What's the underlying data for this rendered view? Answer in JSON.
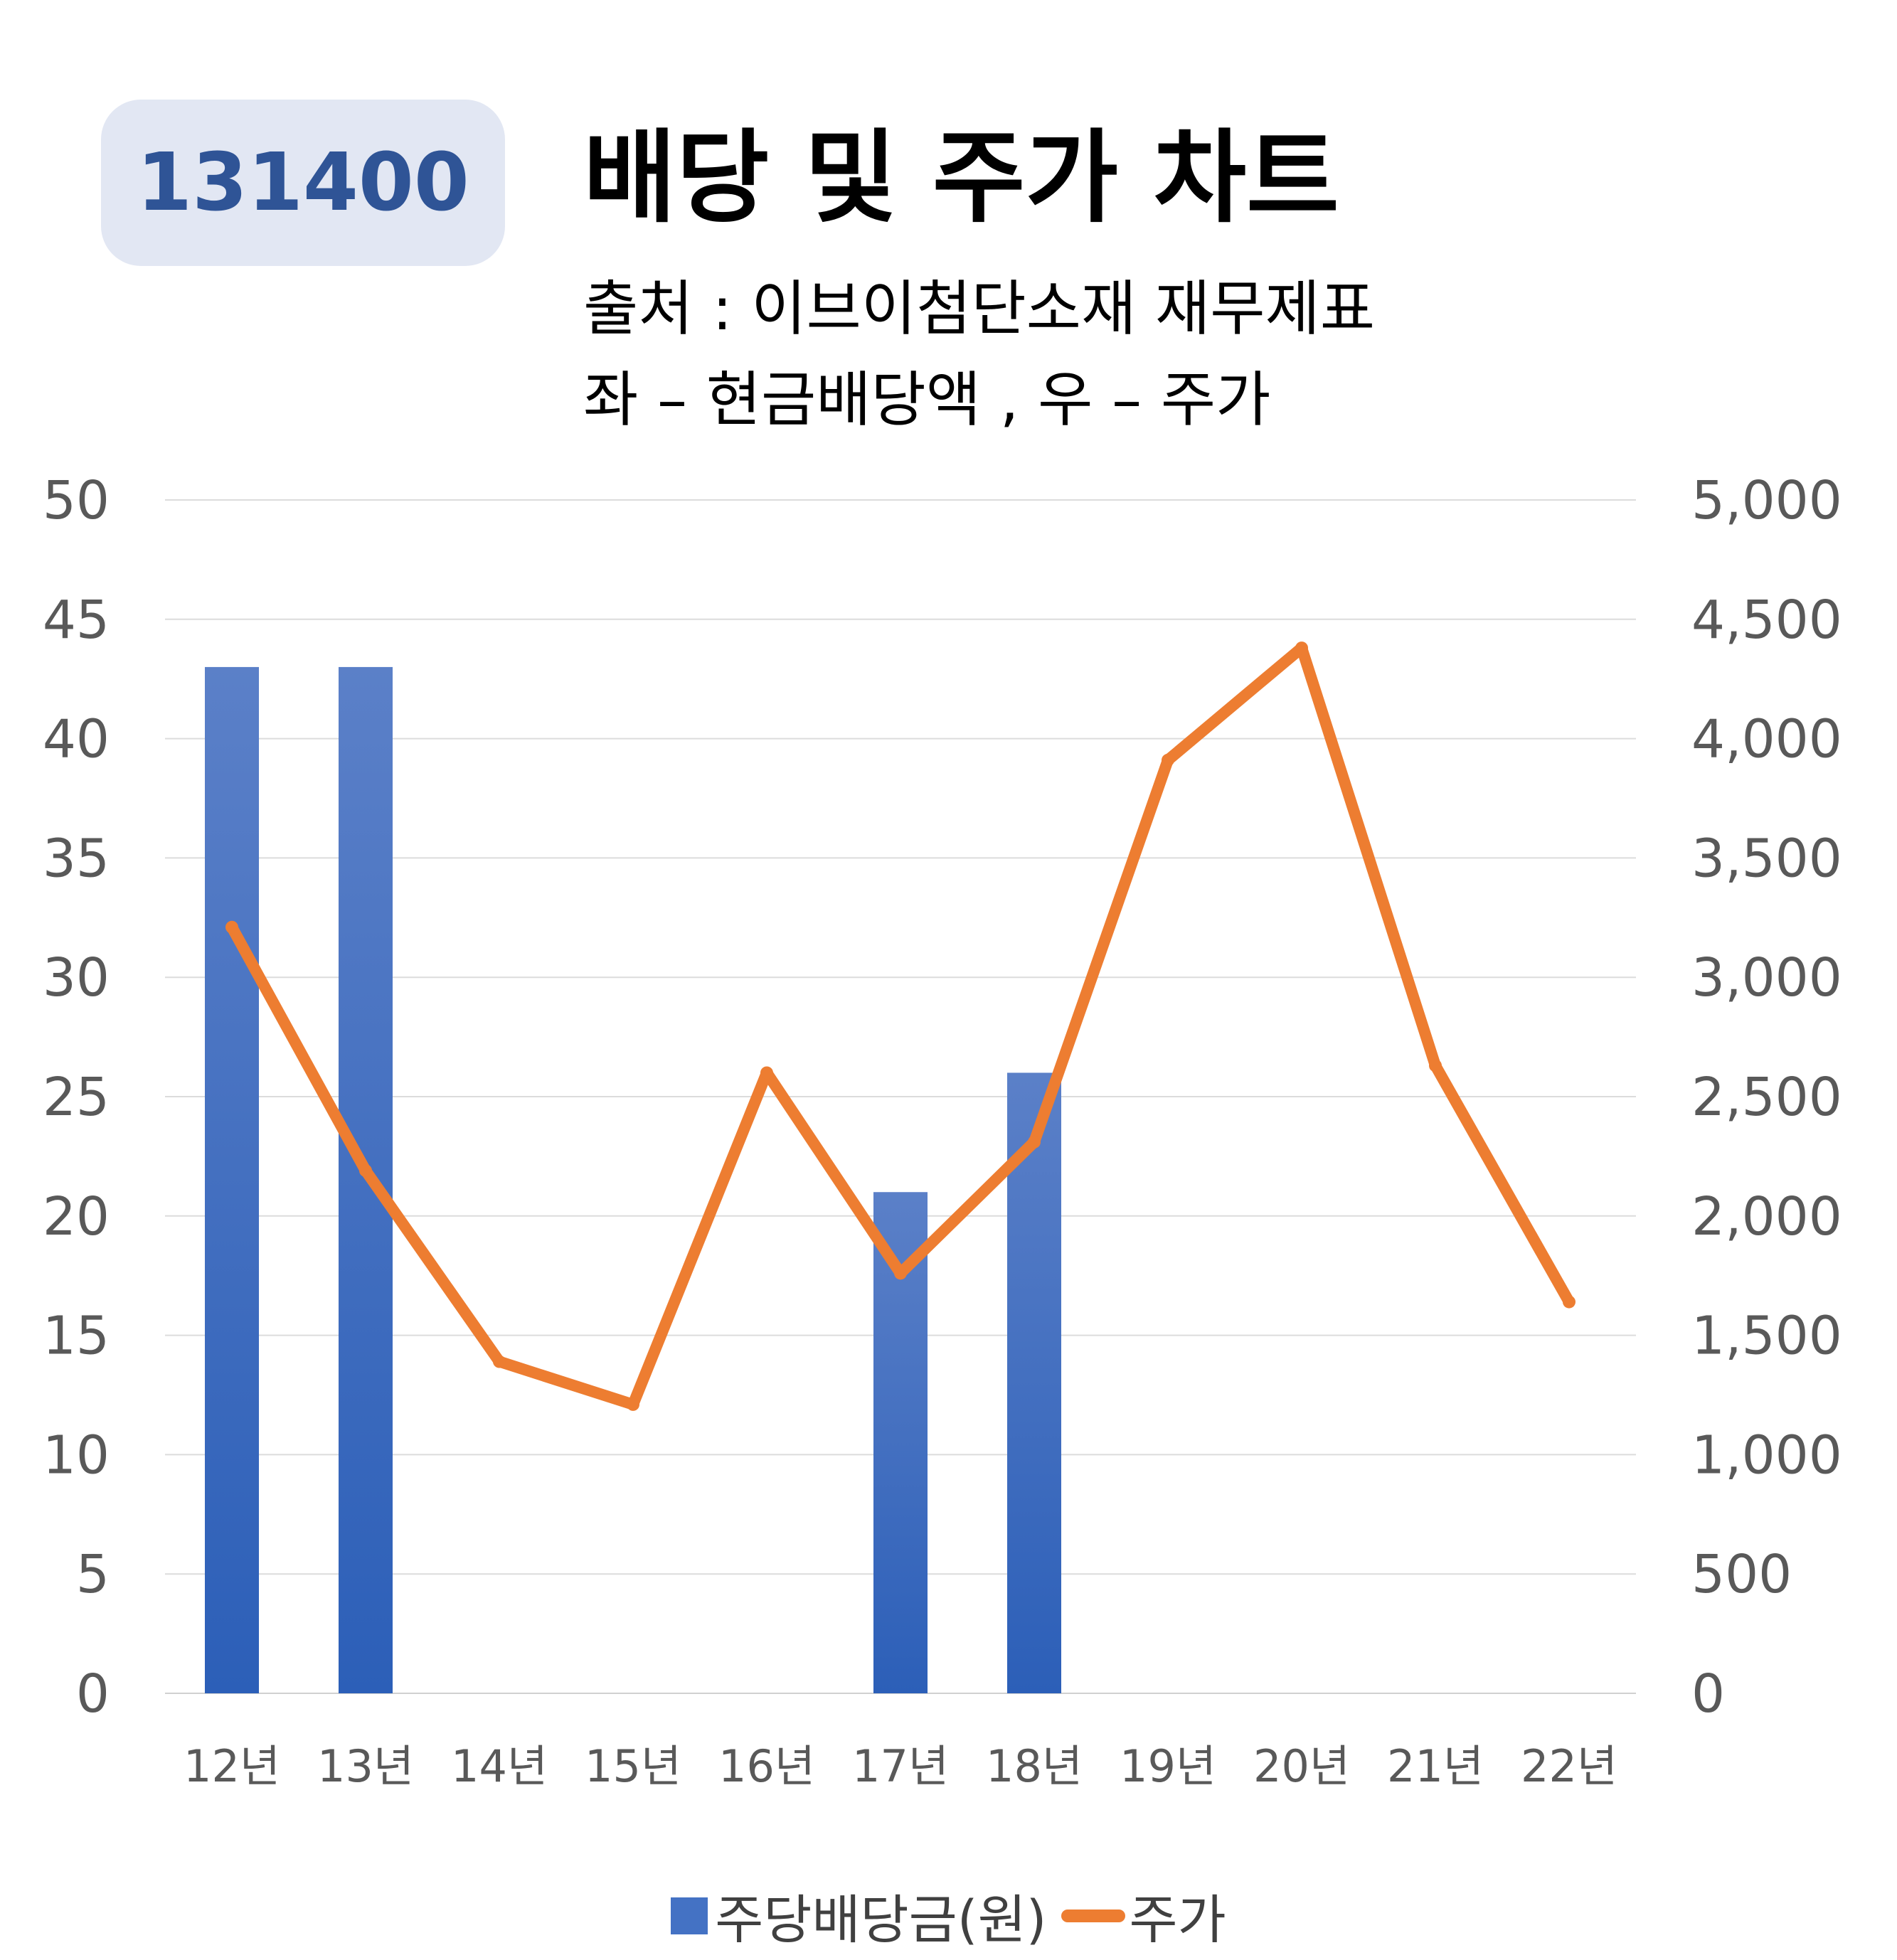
{
  "badge": "131400",
  "title": "배당 및 주가 차트",
  "subtitle_source": "출처 : 이브이첨단소재 재무제표",
  "subtitle_axes": "좌 – 현금배당액  ,  우 – 주가",
  "colors": {
    "bar": "#4472c4",
    "line": "#ed7d31",
    "badge_bg": "#e2e7f3",
    "badge_text": "#2f5496"
  },
  "chart_data": {
    "type": "bar",
    "categories": [
      "12년",
      "13년",
      "14년",
      "15년",
      "16년",
      "17년",
      "18년",
      "19년",
      "20년",
      "21년",
      "22년"
    ],
    "series": [
      {
        "name": "주당배당금(원)",
        "type": "bar",
        "axis": "left",
        "values": [
          43,
          43,
          0,
          0,
          0,
          21,
          26,
          0,
          0,
          0,
          0
        ]
      },
      {
        "name": "주가",
        "type": "line",
        "axis": "right",
        "values": [
          3210,
          2190,
          1390,
          1210,
          2600,
          1760,
          2310,
          3910,
          4380,
          2630,
          1640
        ]
      }
    ],
    "y_left": {
      "min": 0,
      "max": 50,
      "ticks": [
        "0",
        "5",
        "10",
        "15",
        "20",
        "25",
        "30",
        "35",
        "40",
        "45",
        "50"
      ]
    },
    "y_right": {
      "min": 0,
      "max": 5000,
      "ticks": [
        "0",
        "500",
        "1,000",
        "1,500",
        "2,000",
        "2,500",
        "3,000",
        "3,500",
        "4,000",
        "4,500",
        "5,000"
      ]
    },
    "grid": true,
    "legend": "bottom"
  }
}
